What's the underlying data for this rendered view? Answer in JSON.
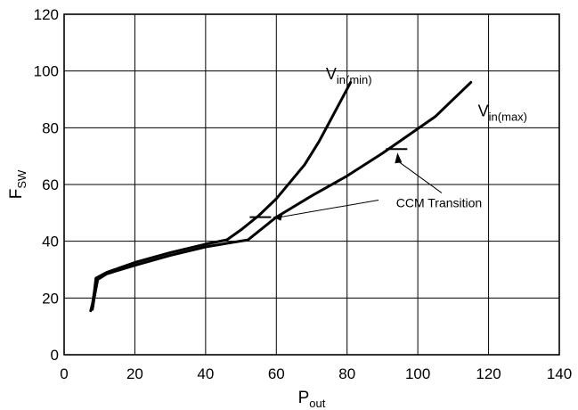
{
  "chart_data": {
    "type": "line",
    "xlabel": {
      "main": "P",
      "sub": "out"
    },
    "ylabel": {
      "main": "F",
      "sub": "SW"
    },
    "xlim": [
      0,
      140
    ],
    "ylim": [
      0,
      120
    ],
    "xticks": [
      0,
      20,
      40,
      60,
      80,
      100,
      120,
      140
    ],
    "yticks": [
      0,
      20,
      40,
      60,
      80,
      100,
      120
    ],
    "grid": true,
    "series": [
      {
        "name": "Vin(min)",
        "label_main": "V",
        "label_sub": "in(min)",
        "label_at": [
          74,
          97
        ],
        "x": [
          7.5,
          8,
          8.5,
          9,
          12,
          20,
          30,
          40,
          46,
          50,
          55,
          60,
          64,
          68,
          72,
          75,
          78,
          81
        ],
        "y": [
          15.5,
          18,
          22,
          27,
          29,
          32.5,
          36,
          39,
          40.5,
          44,
          49,
          55,
          61,
          67,
          75,
          82,
          89,
          96
        ]
      },
      {
        "name": "Vin(max)",
        "label_main": "V",
        "label_sub": "in(max)",
        "label_at": [
          117,
          84
        ],
        "x": [
          8,
          8.5,
          9.5,
          12,
          20,
          30,
          40,
          52,
          60,
          70,
          80,
          90,
          105,
          115
        ],
        "y": [
          16,
          20,
          26.5,
          28.5,
          31.5,
          35,
          38,
          40.5,
          48.5,
          56,
          63,
          71,
          84,
          96
        ]
      }
    ],
    "annotations": [
      {
        "text": "CCM Transition",
        "text_at": [
          106,
          52
        ],
        "marks": [
          {
            "x": 56,
            "y": 48.5
          },
          {
            "x": 94,
            "y": 72.5
          }
        ]
      }
    ]
  }
}
